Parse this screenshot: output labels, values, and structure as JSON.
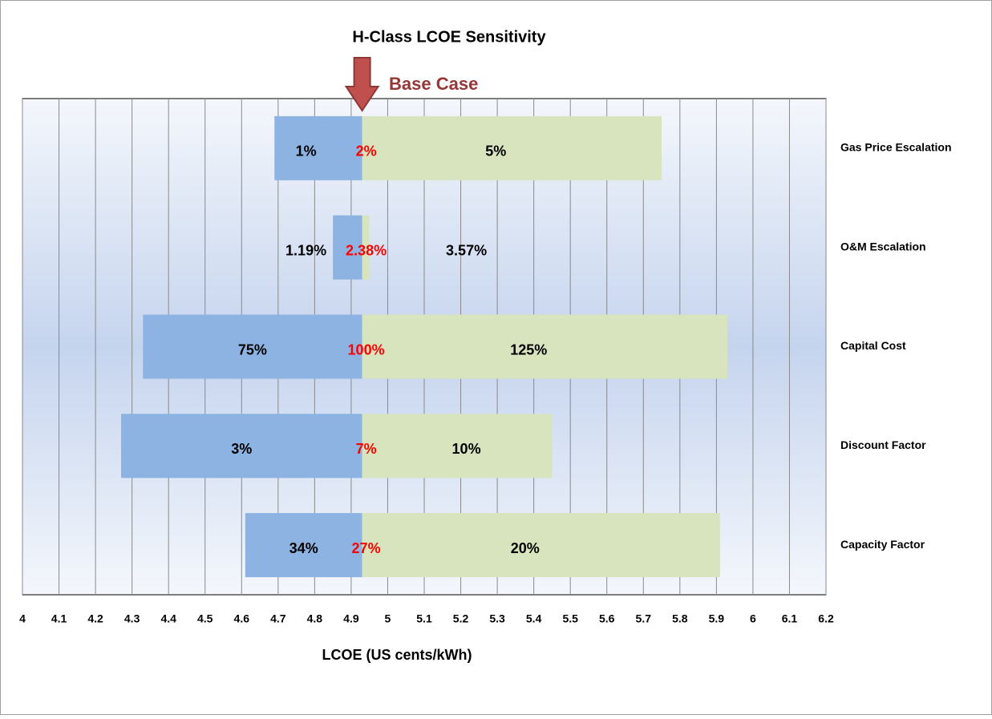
{
  "chart_data": {
    "type": "tornado",
    "title": "H-Class LCOE Sensitivity",
    "annotation": "Base Case",
    "xlabel": "LCOE (US cents/kWh)",
    "categories": [
      "Gas Price Escalation",
      "O&M Escalation",
      "Capital Cost",
      "Discount Factor",
      "Capacity Factor"
    ],
    "base": 4.93,
    "low_values": [
      4.69,
      4.85,
      4.33,
      4.27,
      4.61
    ],
    "high_values": [
      5.75,
      4.95,
      5.93,
      5.45,
      5.91
    ],
    "low_labels": [
      "1%",
      "1.19%",
      "75%",
      "3%",
      "34%"
    ],
    "base_labels": [
      "2%",
      "2.38%",
      "100%",
      "7%",
      "27%"
    ],
    "high_labels": [
      "5%",
      "3.57%",
      "125%",
      "10%",
      "20%"
    ],
    "low_color": "#8db3e2",
    "high_color": "#d7e4bd",
    "base_label_color": "#ff0000",
    "annotation_color": "#953735",
    "xlim": [
      4,
      6.2
    ],
    "xticks": [
      4,
      4.1,
      4.2,
      4.3,
      4.4,
      4.5,
      4.6,
      4.7,
      4.8,
      4.9,
      5,
      5.1,
      5.2,
      5.3,
      5.4,
      5.5,
      5.6,
      5.7,
      5.8,
      5.9,
      6,
      6.1,
      6.2
    ],
    "grid": true
  }
}
